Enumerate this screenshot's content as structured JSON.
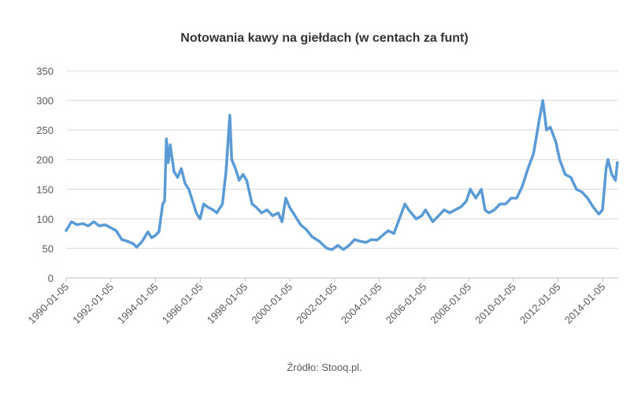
{
  "chart_data": {
    "type": "line",
    "title": "Notowania  kawy na giełdach  (w centach  za funt)",
    "source": "Źródło: Stooq.pl.",
    "x": [
      "1990-01-05",
      "1990-04-01",
      "1990-07-01",
      "1990-10-01",
      "1991-01-01",
      "1991-04-01",
      "1991-07-01",
      "1991-10-01",
      "1992-01-01",
      "1992-04-01",
      "1992-07-01",
      "1992-10-01",
      "1993-01-01",
      "1993-03-01",
      "1993-06-01",
      "1993-09-01",
      "1993-11-01",
      "1994-01-01",
      "1994-03-01",
      "1994-05-01",
      "1994-06-01",
      "1994-07-01",
      "1994-08-01",
      "1994-09-01",
      "1994-11-01",
      "1995-01-01",
      "1995-03-01",
      "1995-05-01",
      "1995-07-01",
      "1995-09-01",
      "1995-11-01",
      "1996-01-01",
      "1996-03-01",
      "1996-05-01",
      "1996-08-01",
      "1996-10-01",
      "1997-01-01",
      "1997-03-01",
      "1997-05-01",
      "1997-06-01",
      "1997-08-01",
      "1997-10-01",
      "1997-12-01",
      "1998-02-01",
      "1998-05-01",
      "1998-07-01",
      "1998-10-01",
      "1999-01-01",
      "1999-04-01",
      "1999-07-01",
      "1999-09-01",
      "1999-11-01",
      "2000-01-01",
      "2000-04-01",
      "2000-07-01",
      "2000-10-01",
      "2001-01-01",
      "2001-05-01",
      "2001-09-01",
      "2001-12-01",
      "2002-03-01",
      "2002-06-01",
      "2002-09-01",
      "2002-12-01",
      "2003-03-01",
      "2003-06-01",
      "2003-09-01",
      "2003-12-01",
      "2004-03-01",
      "2004-06-01",
      "2004-09-01",
      "2004-12-01",
      "2005-03-01",
      "2005-05-01",
      "2005-09-01",
      "2005-12-01",
      "2006-02-01",
      "2006-06-01",
      "2006-09-01",
      "2006-12-01",
      "2007-03-01",
      "2007-06-01",
      "2007-09-01",
      "2007-12-01",
      "2008-02-01",
      "2008-05-01",
      "2008-08-01",
      "2008-10-01",
      "2008-12-01",
      "2009-03-01",
      "2009-06-01",
      "2009-09-01",
      "2009-12-01",
      "2010-03-01",
      "2010-06-01",
      "2010-09-01",
      "2010-12-01",
      "2011-03-01",
      "2011-05-01",
      "2011-07-01",
      "2011-09-01",
      "2011-12-01",
      "2012-02-01",
      "2012-05-01",
      "2012-08-01",
      "2012-11-01",
      "2013-02-01",
      "2013-05-01",
      "2013-08-01",
      "2013-11-01",
      "2014-01-01",
      "2014-03-01",
      "2014-04-01",
      "2014-06-01",
      "2014-08-01",
      "2014-09-01"
    ],
    "series": [
      {
        "color": "#5b9bd5",
        "values": [
          80,
          95,
          90,
          92,
          88,
          95,
          88,
          90,
          85,
          80,
          65,
          62,
          58,
          52,
          62,
          78,
          68,
          72,
          78,
          125,
          130,
          235,
          195,
          225,
          180,
          170,
          185,
          160,
          150,
          130,
          110,
          100,
          125,
          120,
          115,
          110,
          125,
          180,
          275,
          200,
          185,
          165,
          175,
          165,
          125,
          120,
          110,
          115,
          105,
          110,
          95,
          135,
          120,
          105,
          90,
          82,
          70,
          62,
          50,
          48,
          55,
          48,
          55,
          65,
          62,
          60,
          65,
          64,
          72,
          80,
          75,
          100,
          125,
          115,
          100,
          105,
          115,
          95,
          105,
          115,
          110,
          115,
          120,
          130,
          150,
          135,
          150,
          115,
          110,
          115,
          125,
          125,
          135,
          135,
          155,
          185,
          210,
          265,
          300,
          250,
          255,
          230,
          200,
          175,
          170,
          150,
          145,
          135,
          120,
          108,
          115,
          185,
          200,
          175,
          165,
          195
        ]
      }
    ],
    "xlim": [
      "1990-01-05",
      "2014-09-15"
    ],
    "xticks": [
      "1990-01-05",
      "1992-01-05",
      "1994-01-05",
      "1996-01-05",
      "1998-01-05",
      "2000-01-05",
      "2002-01-05",
      "2004-01-05",
      "2006-01-05",
      "2008-01-05",
      "2010-01-05",
      "2012-01-05",
      "2014-01-05"
    ],
    "ylim": [
      0,
      350
    ],
    "yticks": [
      0,
      50,
      100,
      150,
      200,
      250,
      300,
      350
    ],
    "grid": true
  }
}
